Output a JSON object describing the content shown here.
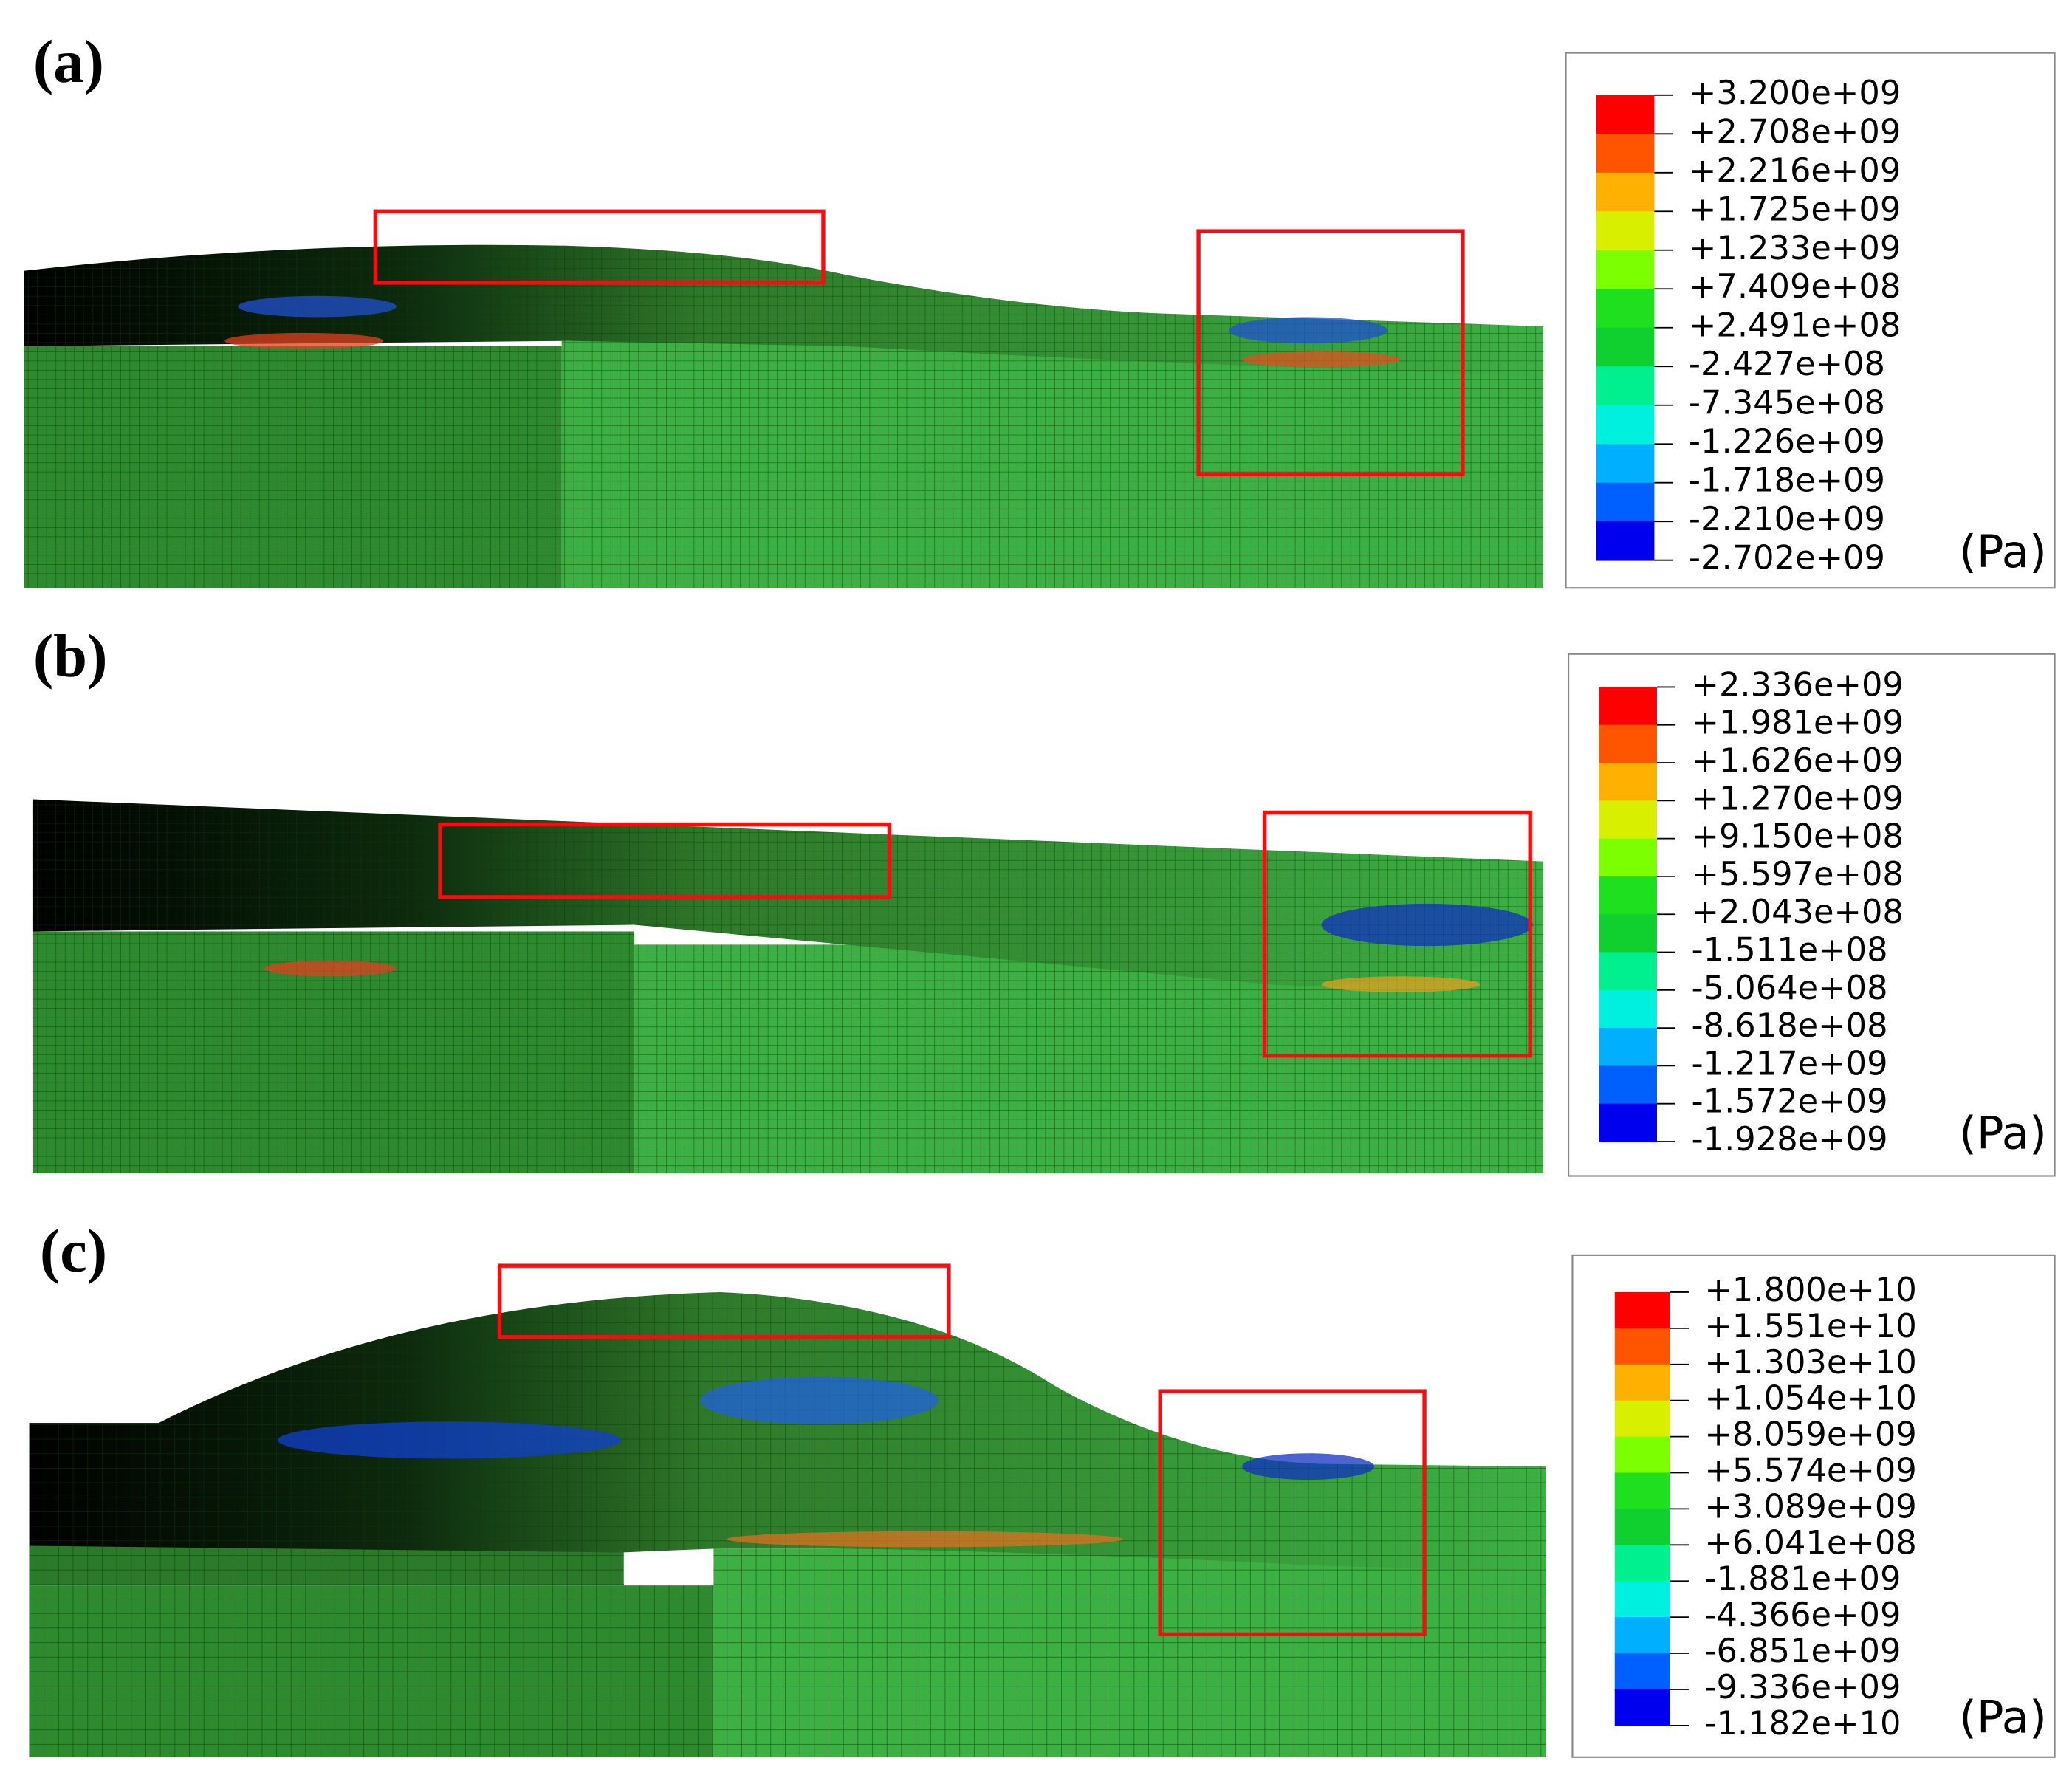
{
  "panels": [
    {
      "label": "(a)",
      "legend": {
        "labels": [
          "+3.200e+09",
          "+2.708e+09",
          "+2.216e+09",
          "+1.725e+09",
          "+1.233e+09",
          "+7.409e+08",
          "+2.491e+08",
          "-2.427e+08",
          "-7.345e+08",
          "-1.226e+09",
          "-1.718e+09",
          "-2.210e+09",
          "-2.702e+09"
        ],
        "unit": "(Pa)"
      }
    },
    {
      "label": "(b)",
      "legend": {
        "labels": [
          "+2.336e+09",
          "+1.981e+09",
          "+1.626e+09",
          "+1.270e+09",
          "+9.150e+08",
          "+5.597e+08",
          "+2.043e+08",
          "-1.511e+08",
          "-5.064e+08",
          "-8.618e+08",
          "-1.217e+09",
          "-1.572e+09",
          "-1.928e+09"
        ],
        "unit": "(Pa)"
      }
    },
    {
      "label": "(c)",
      "legend": {
        "labels": [
          "+1.800e+10",
          "+1.551e+10",
          "+1.303e+10",
          "+1.054e+10",
          "+8.059e+09",
          "+5.574e+09",
          "+3.089e+09",
          "+6.041e+08",
          "-1.881e+09",
          "-4.366e+09",
          "-6.851e+09",
          "-9.336e+09",
          "-1.182e+10"
        ],
        "unit": "(Pa)"
      }
    }
  ]
}
